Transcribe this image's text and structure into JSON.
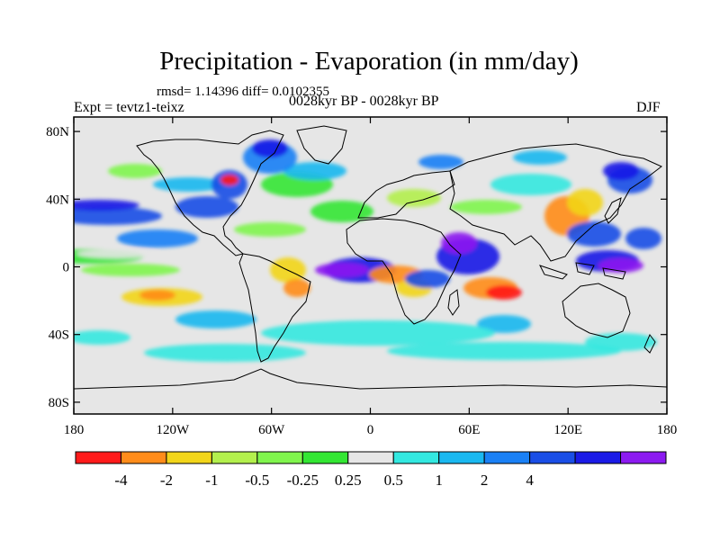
{
  "title": "Precipitation - Evaporation (in mm/day)",
  "stats": "rmsd= 1.14396 diff= 0.0102355",
  "experiment": "Expt = tevtz1-teixz",
  "period": "0028kyr BP - 0028kyr BP",
  "season": "DJF",
  "map": {
    "lat_labels": [
      "80N",
      "40N",
      "0",
      "40S",
      "80S"
    ],
    "lat_values": [
      80,
      40,
      0,
      -40,
      -80
    ],
    "lon_labels": [
      "180",
      "120W",
      "60W",
      "0",
      "60E",
      "120E",
      "180"
    ],
    "lon_values": [
      -180,
      -120,
      -60,
      0,
      60,
      120,
      180
    ],
    "background_color": "#e6e6e6"
  },
  "colorbar": {
    "labels": [
      "-4",
      "-2",
      "-1",
      "-0.5",
      "-0.25",
      "0.25",
      "0.5",
      "1",
      "2",
      "4"
    ],
    "colors": [
      "#ff1a1a",
      "#ff8c1a",
      "#f2d51a",
      "#b3f04d",
      "#80f54d",
      "#33e633",
      "#e6e6e6",
      "#33e8e0",
      "#1ab8f0",
      "#1a80f5",
      "#1a4ee6",
      "#1a1ae6",
      "#8c1af0"
    ]
  }
}
